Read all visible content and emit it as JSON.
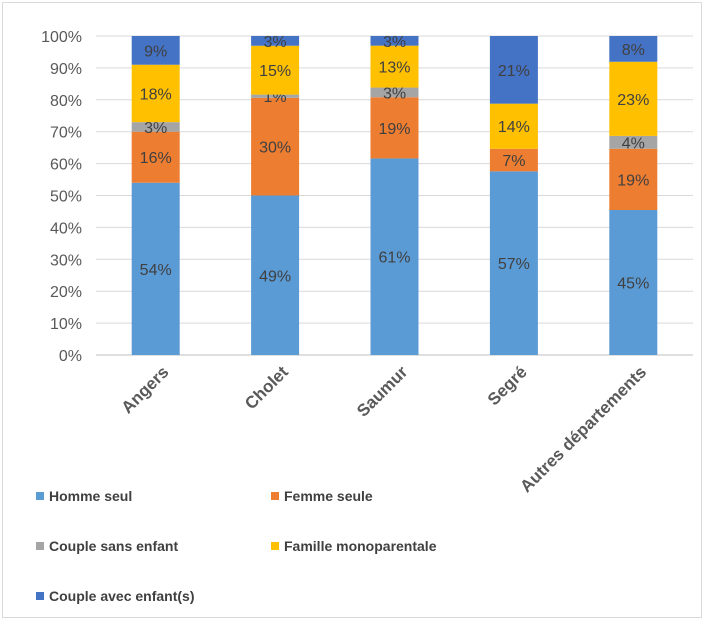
{
  "chart_data": {
    "type": "bar",
    "stacked": true,
    "normalized": true,
    "categories": [
      "Angers",
      "Cholet",
      "Saumur",
      "Segré",
      "Autres départements"
    ],
    "series": [
      {
        "name": "Homme seul",
        "color": "#5b9bd5",
        "values": [
          54,
          49,
          61,
          57,
          45
        ],
        "labels": [
          "54%",
          "49%",
          "61%",
          "57%",
          "45%"
        ]
      },
      {
        "name": "Femme seule",
        "color": "#ed7d31",
        "values": [
          16,
          30,
          19,
          7,
          19
        ],
        "labels": [
          "16%",
          "30%",
          "19%",
          "7%",
          "19%"
        ]
      },
      {
        "name": "Couple sans enfant",
        "color": "#a5a5a5",
        "values": [
          3,
          1,
          3,
          0,
          4
        ],
        "labels": [
          "3%",
          "1%",
          "3%",
          "",
          "4%"
        ]
      },
      {
        "name": "Famille monoparentale",
        "color": "#ffc000",
        "values": [
          18,
          15,
          13,
          14,
          23
        ],
        "labels": [
          "18%",
          "15%",
          "13%",
          "14%",
          "23%"
        ]
      },
      {
        "name": "Couple avec enfant(s)",
        "color": "#4472c4",
        "values": [
          9,
          3,
          3,
          21,
          8
        ],
        "labels": [
          "9%",
          "3%",
          "3%",
          "21%",
          "8%"
        ]
      }
    ],
    "yticks": [
      "0%",
      "10%",
      "20%",
      "30%",
      "40%",
      "50%",
      "60%",
      "70%",
      "80%",
      "90%",
      "100%"
    ],
    "ylim": [
      0,
      100
    ],
    "grid": true,
    "legend_position": "bottom-left"
  }
}
